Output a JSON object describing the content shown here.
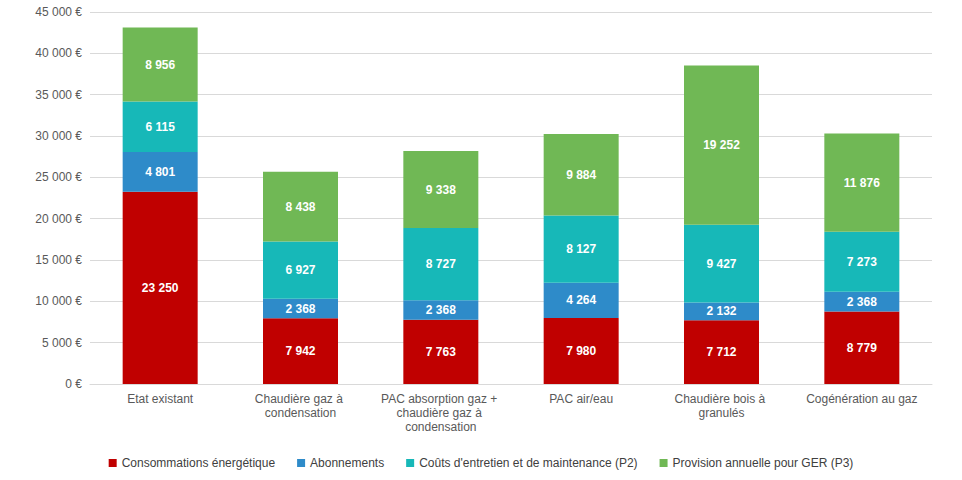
{
  "chart_data": {
    "type": "bar",
    "stacked": true,
    "data_labels": true,
    "grid": true,
    "legend": "bottom",
    "categories": [
      "Etat existant",
      "Chaudière gaz à condensation",
      "PAC absorption gaz + chaudière gaz à condensation",
      "PAC air/eau",
      "Chaudière bois à granulés",
      "Cogénération au gaz"
    ],
    "ylim": [
      0,
      45000
    ],
    "yticks": [
      {
        "value": 0,
        "label": "0 €"
      },
      {
        "value": 5000,
        "label": "5 000 €"
      },
      {
        "value": 10000,
        "label": "10 000 €"
      },
      {
        "value": 15000,
        "label": "15 000 €"
      },
      {
        "value": 20000,
        "label": "20 000 €"
      },
      {
        "value": 25000,
        "label": "25 000 €"
      },
      {
        "value": 30000,
        "label": "30 000 €"
      },
      {
        "value": 35000,
        "label": "35 000 €"
      },
      {
        "value": 40000,
        "label": "40 000 €"
      },
      {
        "value": 45000,
        "label": "45 000 €"
      }
    ],
    "series": [
      {
        "name": "Consommations énergétique",
        "color": "#C00000",
        "values": [
          23250,
          7942,
          7763,
          7980,
          7712,
          8779
        ],
        "value_labels": [
          "23 250",
          "7 942",
          "7 763",
          "7 980",
          "7 712",
          "8 779"
        ]
      },
      {
        "name": "Abonnements",
        "color": "#2E8BC9",
        "values": [
          4801,
          2368,
          2368,
          4264,
          2132,
          2368
        ],
        "value_labels": [
          "4 801",
          "2 368",
          "2 368",
          "4 264",
          "2 132",
          "2 368"
        ]
      },
      {
        "name": "Coûts d'entretien et de maintenance (P2)",
        "color": "#17B8B8",
        "values": [
          6115,
          6927,
          8727,
          8127,
          9427,
          7273
        ],
        "value_labels": [
          "6 115",
          "6 927",
          "8 727",
          "8 127",
          "9 427",
          "7 273"
        ]
      },
      {
        "name": "Provision annuelle pour GER (P3)",
        "color": "#70B855",
        "values": [
          8956,
          8438,
          9338,
          9884,
          19252,
          11876
        ],
        "value_labels": [
          "8 956",
          "8 438",
          "9 338",
          "9 884",
          "19 252",
          "11 876"
        ]
      }
    ]
  }
}
